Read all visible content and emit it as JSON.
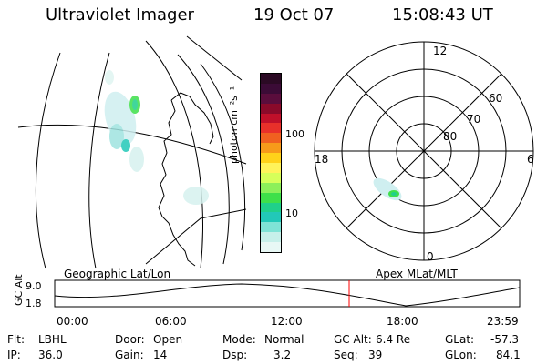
{
  "header": {
    "instrument": "Ultraviolet Imager",
    "date": "19 Oct 07",
    "time": "15:08:43 UT"
  },
  "colorbar": {
    "unit_label": "photon cm⁻²s⁻¹",
    "ticks": [
      "100",
      "10"
    ],
    "colors": [
      "#2b0a24",
      "#3b0b36",
      "#5a0d3c",
      "#8a0a2a",
      "#c0102a",
      "#e8302a",
      "#f06020",
      "#f79a1a",
      "#ffd21a",
      "#fff35a",
      "#d6ff5a",
      "#8cf05a",
      "#3ee04a",
      "#20d08a",
      "#22c8b8",
      "#7fe3d6",
      "#c7f0ea",
      "#e8f8f5"
    ]
  },
  "maps": {
    "left_label": "Geographic Lat/Lon",
    "right_label": "Apex MLat/MLT",
    "polar_hours": {
      "top": "12",
      "left": "18",
      "right": "6",
      "bottom": "0"
    },
    "polar_lats": [
      "60",
      "70",
      "80"
    ]
  },
  "timeline": {
    "axis_label": "GC Alt",
    "y_ticks": [
      "9.0",
      "1.8"
    ],
    "x_ticks": [
      "00:00",
      "06:00",
      "12:00",
      "18:00",
      "23:59"
    ]
  },
  "info": {
    "flt": {
      "label": "Flt:",
      "value": "LBHL"
    },
    "ip": {
      "label": "IP:",
      "value": "36.0"
    },
    "door": {
      "label": "Door:",
      "value": "Open"
    },
    "gain": {
      "label": "Gain:",
      "value": "14"
    },
    "mode": {
      "label": "Mode:",
      "value": "Normal"
    },
    "dsp": {
      "label": "Dsp:",
      "value": "3.2"
    },
    "gcalt": {
      "label": "GC Alt:",
      "value": "6.4 Re"
    },
    "seq": {
      "label": "Seq:",
      "value": "39"
    },
    "glat": {
      "label": "GLat:",
      "value": "-57.3"
    },
    "glon": {
      "label": "GLon:",
      "value": "84.1"
    }
  }
}
